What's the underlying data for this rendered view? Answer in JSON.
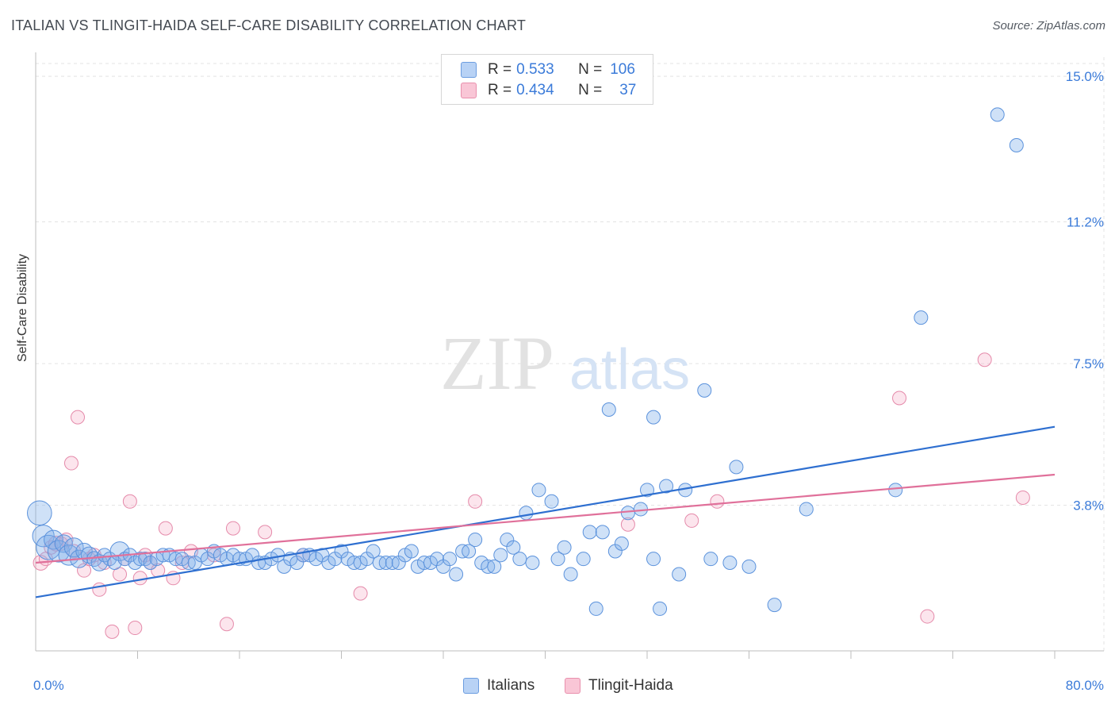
{
  "header": {
    "title": "ITALIAN VS TLINGIT-HAIDA SELF-CARE DISABILITY CORRELATION CHART",
    "source": "Source: ZipAtlas.com"
  },
  "watermark": {
    "zip": "ZIP",
    "atlas": "atlas"
  },
  "legend": {
    "r_label": "R =",
    "n_label": "N =",
    "rows": [
      {
        "r": "0.533",
        "n": "106",
        "fill": "#b8d2f5",
        "stroke": "#6c9de0"
      },
      {
        "r": "0.434",
        "n": "37",
        "fill": "#f9c6d6",
        "stroke": "#e990ad"
      }
    ]
  },
  "colors": {
    "italians_fill": "rgba(130,175,235,0.38)",
    "italians_stroke": "#5b92dc",
    "italians_line": "#2e6fd0",
    "tlingit_fill": "rgba(245,170,195,0.30)",
    "tlingit_stroke": "#e58aaa",
    "tlingit_line": "#e0709a",
    "tick_label": "#3b7bd9",
    "grid": "#e3e3e3"
  },
  "chart_data": {
    "type": "scatter",
    "title": "ITALIAN VS TLINGIT-HAIDA SELF-CARE DISABILITY CORRELATION CHART",
    "xlabel": "",
    "ylabel": "Self-Care Disability",
    "xlim": [
      0,
      80
    ],
    "ylim": [
      0,
      15.5
    ],
    "x_tick_labels": [
      "0.0%",
      "80.0%"
    ],
    "y_ticks": [
      3.8,
      7.5,
      11.2,
      15.0
    ],
    "y_tick_labels": [
      "3.8%",
      "7.5%",
      "11.2%",
      "15.0%"
    ],
    "grid": true,
    "legend_position": "top-center",
    "series": [
      {
        "name": "Italians",
        "trend": {
          "x": [
            0,
            80
          ],
          "y": [
            1.4,
            5.85
          ]
        },
        "points": [
          [
            0.3,
            3.6,
            1.8
          ],
          [
            0.6,
            3.0,
            1.6
          ],
          [
            1.0,
            2.7,
            1.8
          ],
          [
            1.4,
            2.9,
            1.4
          ],
          [
            1.8,
            2.6,
            1.6
          ],
          [
            2.2,
            2.8,
            1.3
          ],
          [
            2.6,
            2.5,
            1.5
          ],
          [
            3.0,
            2.7,
            1.4
          ],
          [
            3.4,
            2.4,
            1.3
          ],
          [
            3.8,
            2.6,
            1.2
          ],
          [
            4.2,
            2.5,
            1.2
          ],
          [
            4.6,
            2.4,
            1.1
          ],
          [
            5.0,
            2.3,
            1.2
          ],
          [
            5.4,
            2.5,
            1.0
          ],
          [
            5.8,
            2.4,
            1.0
          ],
          [
            6.2,
            2.3,
            1.0
          ],
          [
            6.6,
            2.6,
            1.4
          ],
          [
            7.0,
            2.4,
            1.0
          ],
          [
            7.4,
            2.5,
            1.0
          ],
          [
            7.8,
            2.3,
            1.0
          ],
          [
            8.2,
            2.4,
            1.0
          ],
          [
            8.6,
            2.4,
            1.0
          ],
          [
            9.0,
            2.3,
            1.0
          ],
          [
            9.5,
            2.4,
            1.0
          ],
          [
            10.0,
            2.5,
            1.0
          ],
          [
            10.5,
            2.5,
            1.0
          ],
          [
            11.0,
            2.4,
            1.0
          ],
          [
            11.5,
            2.4,
            1.0
          ],
          [
            12.0,
            2.3,
            1.0
          ],
          [
            12.5,
            2.3,
            1.0
          ],
          [
            13.0,
            2.5,
            1.0
          ],
          [
            13.5,
            2.4,
            1.0
          ],
          [
            14.0,
            2.6,
            1.0
          ],
          [
            14.5,
            2.5,
            1.0
          ],
          [
            15.0,
            2.4,
            1.0
          ],
          [
            15.5,
            2.5,
            1.0
          ],
          [
            16.0,
            2.4,
            1.0
          ],
          [
            16.5,
            2.4,
            1.0
          ],
          [
            17.0,
            2.5,
            1.0
          ],
          [
            17.5,
            2.3,
            1.0
          ],
          [
            18.0,
            2.3,
            1.0
          ],
          [
            18.5,
            2.4,
            1.0
          ],
          [
            19.0,
            2.5,
            1.0
          ],
          [
            19.5,
            2.2,
            1.0
          ],
          [
            20.0,
            2.4,
            1.0
          ],
          [
            20.5,
            2.3,
            1.0
          ],
          [
            21.0,
            2.5,
            1.0
          ],
          [
            21.5,
            2.5,
            1.0
          ],
          [
            22.0,
            2.4,
            1.0
          ],
          [
            22.5,
            2.5,
            1.0
          ],
          [
            23.0,
            2.3,
            1.0
          ],
          [
            23.5,
            2.4,
            1.0
          ],
          [
            24.0,
            2.6,
            1.0
          ],
          [
            24.5,
            2.4,
            1.0
          ],
          [
            25.0,
            2.3,
            1.0
          ],
          [
            25.5,
            2.3,
            1.0
          ],
          [
            26.0,
            2.4,
            1.0
          ],
          [
            26.5,
            2.6,
            1.0
          ],
          [
            27.0,
            2.3,
            1.0
          ],
          [
            27.5,
            2.3,
            1.0
          ],
          [
            28.0,
            2.3,
            1.0
          ],
          [
            28.5,
            2.3,
            1.0
          ],
          [
            29.0,
            2.5,
            1.0
          ],
          [
            29.5,
            2.6,
            1.0
          ],
          [
            30.0,
            2.2,
            1.0
          ],
          [
            30.5,
            2.3,
            1.0
          ],
          [
            31.0,
            2.3,
            1.0
          ],
          [
            31.5,
            2.4,
            1.0
          ],
          [
            32.0,
            2.2,
            1.0
          ],
          [
            32.5,
            2.4,
            1.0
          ],
          [
            33.0,
            2.0,
            1.0
          ],
          [
            33.5,
            2.6,
            1.0
          ],
          [
            34.0,
            2.6,
            1.0
          ],
          [
            34.5,
            2.9,
            1.0
          ],
          [
            35.0,
            2.3,
            1.0
          ],
          [
            35.5,
            2.2,
            1.0
          ],
          [
            36.0,
            2.2,
            1.0
          ],
          [
            36.5,
            2.5,
            1.0
          ],
          [
            37.0,
            2.9,
            1.0
          ],
          [
            37.5,
            2.7,
            1.0
          ],
          [
            38.0,
            2.4,
            1.0
          ],
          [
            38.5,
            3.6,
            1.0
          ],
          [
            39.0,
            2.3,
            1.0
          ],
          [
            39.5,
            4.2,
            1.0
          ],
          [
            40.5,
            3.9,
            1.0
          ],
          [
            41.0,
            2.4,
            1.0
          ],
          [
            41.5,
            2.7,
            1.0
          ],
          [
            42.0,
            2.0,
            1.0
          ],
          [
            43.0,
            2.4,
            1.0
          ],
          [
            43.5,
            3.1,
            1.0
          ],
          [
            44.0,
            1.1,
            1.0
          ],
          [
            44.5,
            3.1,
            1.0
          ],
          [
            45.0,
            6.3,
            1.0
          ],
          [
            45.5,
            2.6,
            1.0
          ],
          [
            46.0,
            2.8,
            1.0
          ],
          [
            46.5,
            3.6,
            1.0
          ],
          [
            47.5,
            3.7,
            1.0
          ],
          [
            48.5,
            6.1,
            1.0
          ],
          [
            48.5,
            2.4,
            1.0
          ],
          [
            49.0,
            1.1,
            1.0
          ],
          [
            49.5,
            4.3,
            1.0
          ],
          [
            48.0,
            4.2,
            1.0
          ],
          [
            50.5,
            2.0,
            1.0
          ],
          [
            51.0,
            4.2,
            1.0
          ],
          [
            52.5,
            6.8,
            1.0
          ],
          [
            53.0,
            2.4,
            1.0
          ],
          [
            54.5,
            2.3,
            1.0
          ],
          [
            55.0,
            4.8,
            1.0
          ],
          [
            56.0,
            2.2,
            1.0
          ],
          [
            58.0,
            1.2,
            1.0
          ],
          [
            60.5,
            3.7,
            1.0
          ],
          [
            67.5,
            4.2,
            1.0
          ],
          [
            69.5,
            8.7,
            1.0
          ],
          [
            75.5,
            14.0,
            1.0
          ],
          [
            77.0,
            13.2,
            1.0
          ]
        ]
      },
      {
        "name": "Tlingit-Haida",
        "trend": {
          "x": [
            0,
            80
          ],
          "y": [
            2.3,
            4.6
          ]
        },
        "points": [
          [
            0.4,
            2.3,
            1.1
          ],
          [
            0.8,
            2.4,
            1.0
          ],
          [
            1.2,
            2.7,
            1.0
          ],
          [
            1.6,
            2.8,
            1.1
          ],
          [
            2.0,
            2.8,
            1.0
          ],
          [
            2.4,
            2.9,
            1.0
          ],
          [
            2.8,
            4.9,
            1.0
          ],
          [
            3.0,
            2.6,
            1.0
          ],
          [
            3.3,
            6.1,
            1.0
          ],
          [
            3.8,
            2.1,
            1.0
          ],
          [
            4.2,
            2.4,
            1.0
          ],
          [
            4.6,
            2.5,
            1.0
          ],
          [
            5.0,
            1.6,
            1.0
          ],
          [
            5.4,
            2.3,
            1.0
          ],
          [
            6.0,
            0.5,
            1.0
          ],
          [
            6.6,
            2.0,
            1.0
          ],
          [
            7.0,
            2.4,
            1.0
          ],
          [
            7.4,
            3.9,
            1.0
          ],
          [
            7.8,
            0.6,
            1.0
          ],
          [
            8.2,
            1.9,
            1.0
          ],
          [
            8.6,
            2.5,
            1.0
          ],
          [
            9.0,
            2.3,
            1.0
          ],
          [
            9.6,
            2.1,
            1.0
          ],
          [
            10.2,
            3.2,
            1.0
          ],
          [
            10.8,
            1.9,
            1.0
          ],
          [
            11.5,
            2.3,
            1.0
          ],
          [
            12.2,
            2.6,
            1.0
          ],
          [
            14.0,
            2.5,
            1.0
          ],
          [
            15.0,
            0.7,
            1.0
          ],
          [
            15.5,
            3.2,
            1.0
          ],
          [
            18.0,
            3.1,
            1.0
          ],
          [
            21.0,
            2.5,
            1.0
          ],
          [
            25.5,
            1.5,
            1.0
          ],
          [
            34.5,
            3.9,
            1.0
          ],
          [
            46.5,
            3.3,
            1.0
          ],
          [
            51.5,
            3.4,
            1.0
          ],
          [
            53.5,
            3.9,
            1.0
          ],
          [
            67.8,
            6.6,
            1.0
          ],
          [
            70.0,
            0.9,
            1.0
          ],
          [
            74.5,
            7.6,
            1.0
          ],
          [
            77.5,
            4.0,
            1.0
          ]
        ]
      }
    ]
  },
  "bottom_legend": {
    "items": [
      "Italians",
      "Tlingit-Haida"
    ]
  }
}
